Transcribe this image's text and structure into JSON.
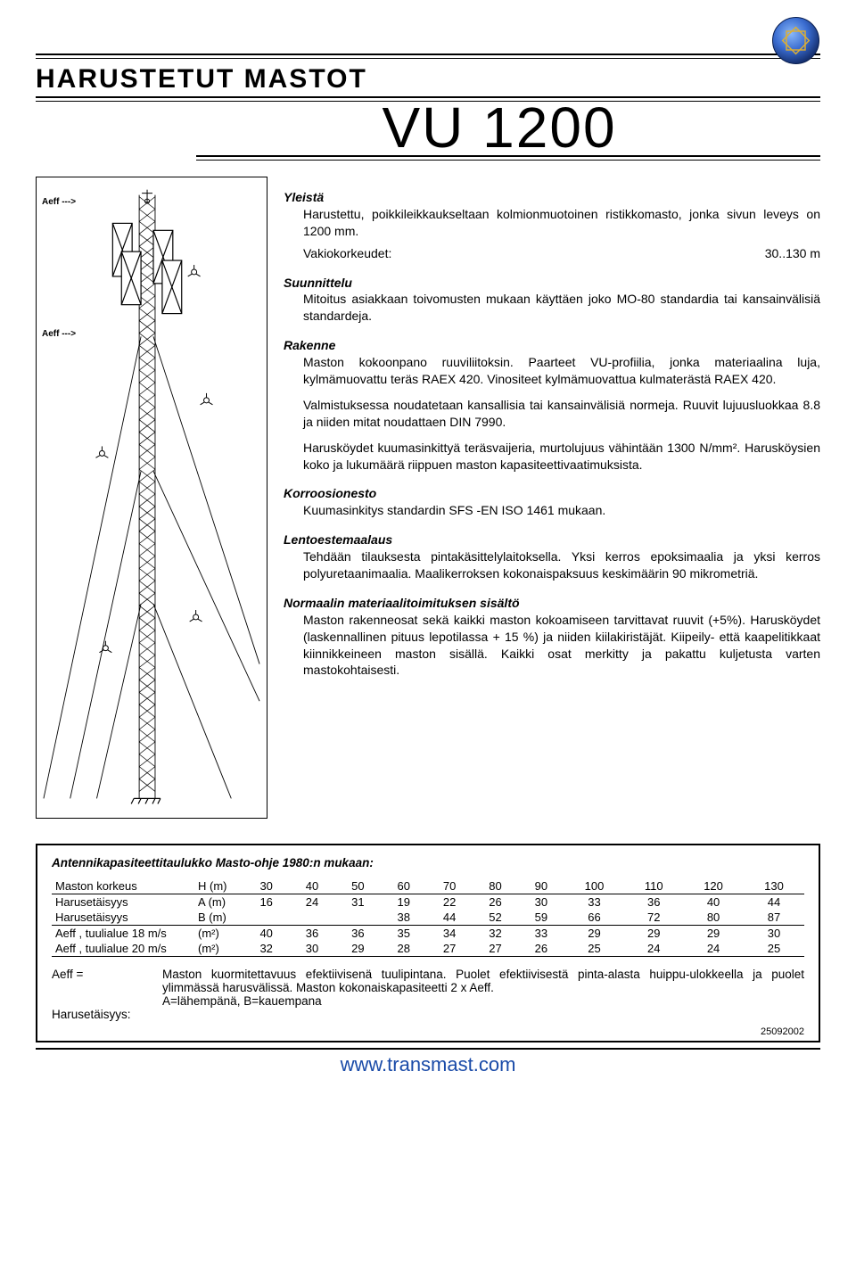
{
  "header": {
    "category": "HARUSTETUT MASTOT",
    "model": "VU 1200"
  },
  "diagram": {
    "aeff1": "Aeff --->",
    "aeff2": "Aeff --->"
  },
  "sections": {
    "yleista": {
      "title": "Yleistä",
      "body": "Harustettu, poikkileikkaukseltaan kolmionmuotoinen ristikkomasto, jonka sivun leveys on 1200 mm.",
      "vakio_label": "Vakiokorkeudet:",
      "vakio_value": "30..130 m"
    },
    "suunnittelu": {
      "title": "Suunnittelu",
      "body": "Mitoitus asiakkaan toivomusten mukaan käyttäen joko MO-80 standardia tai kansainvälisiä standardeja."
    },
    "rakenne": {
      "title": "Rakenne",
      "p1": "Maston kokoonpano ruuviliitoksin. Paarteet VU-profiilia, jonka materiaalina luja, kylmämuovattu teräs RAEX 420. Vinositeet kylmämuovattua kulmaterästä RAEX 420.",
      "p2": "Valmistuksessa noudatetaan kansallisia tai kansainvälisiä normeja. Ruuvit lujuusluokkaa 8.8 ja niiden mitat noudattaen DIN 7990.",
      "p3": "Harusköydet kuumasinkittyä teräsvaijeria, murtolujuus vähintään 1300 N/mm². Harusköysien koko ja lukumäärä riippuen maston kapasiteettivaatimuksista."
    },
    "korroosio": {
      "title": "Korroosionesto",
      "body": "Kuumasinkitys standardin SFS -EN ISO 1461 mukaan."
    },
    "lento": {
      "title": "Lentoestemaalaus",
      "body": "Tehdään tilauksesta pintakäsittelylaitoksella. Yksi kerros epoksimaalia ja yksi kerros polyuretaanimaalia. Maalikerroksen kokonaispaksuus keskimäärin 90 mikrometriä."
    },
    "normaali": {
      "title": "Normaalin materiaalitoimituksen sisältö",
      "body": "Maston rakenneosat sekä kaikki maston kokoamiseen tarvittavat ruuvit (+5%). Harusköydet (laskennallinen pituus lepotilassa + 15 %) ja niiden kiilakiristäjät. Kiipeily- että kaapelitikkaat kiinnikkeineen maston sisällä. Kaikki osat merkitty ja pakattu kuljetusta varten mastokohtaisesti."
    }
  },
  "table": {
    "title": "Antennikapasiteettitaulukko Masto-ohje 1980:n mukaan:",
    "columns": [
      "30",
      "40",
      "50",
      "60",
      "70",
      "80",
      "90",
      "100",
      "110",
      "120",
      "130"
    ],
    "rows": [
      {
        "label": "Maston korkeus",
        "unit": "H (m)",
        "vals": [
          "30",
          "40",
          "50",
          "60",
          "70",
          "80",
          "90",
          "100",
          "110",
          "120",
          "130"
        ],
        "underlined": true
      },
      {
        "label": "Harusetäisyys",
        "unit": "A (m)",
        "vals": [
          "16",
          "24",
          "31",
          "19",
          "22",
          "26",
          "30",
          "33",
          "36",
          "40",
          "44"
        ],
        "underlined": false
      },
      {
        "label": "Harusetäisyys",
        "unit": "B (m)",
        "vals": [
          "",
          "",
          "",
          "38",
          "44",
          "52",
          "59",
          "66",
          "72",
          "80",
          "87"
        ],
        "underlined": true
      },
      {
        "label": "Aeff , tuulialue 18 m/s",
        "unit": "(m²)",
        "vals": [
          "40",
          "36",
          "36",
          "35",
          "34",
          "32",
          "33",
          "29",
          "29",
          "29",
          "30"
        ],
        "underlined": false
      },
      {
        "label": "Aeff , tuulialue 20 m/s",
        "unit": "(m²)",
        "vals": [
          "32",
          "30",
          "29",
          "28",
          "27",
          "27",
          "26",
          "25",
          "24",
          "24",
          "25"
        ],
        "underlined": true
      }
    ],
    "defs": {
      "aeff_label": "Aeff =",
      "aeff_text": "Maston kuormitettavuus efektiivisenä tuulipintana. Puolet efektiivisestä pinta-alasta huippu-ulokkeella ja puolet ylimmässä harusvälissä. Maston kokonaiskapasiteetti 2 x Aeff.",
      "harus_label": "Harusetäisyys:",
      "harus_text": "A=lähempänä, B=kauempana"
    },
    "datecode": "25092002"
  },
  "footer": {
    "url": "www.transmast.com"
  },
  "style": {
    "logo_gradient_outer": "#1a3a8a",
    "logo_gradient_inner": "#6aa0f0",
    "url_color": "#1a4ba8"
  }
}
